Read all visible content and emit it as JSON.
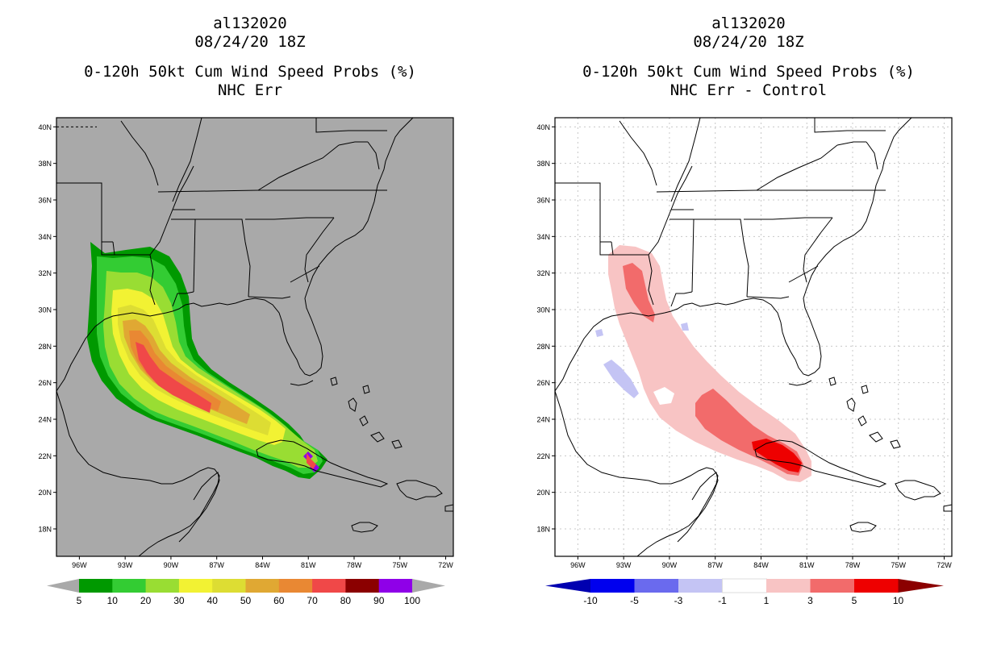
{
  "left_panel": {
    "storm_id": "al132020",
    "datetime": "08/24/20 18Z",
    "product": "0-120h 50kt Cum Wind Speed Probs (%)",
    "subtitle": "NHC Err",
    "background_color": "#a9a9a9",
    "colorbar": {
      "ticks": [
        "5",
        "10",
        "20",
        "30",
        "40",
        "50",
        "60",
        "70",
        "80",
        "90",
        "100"
      ],
      "colors": [
        "#009900",
        "#33cc33",
        "#99dd33",
        "#f2f233",
        "#dddd33",
        "#e0a833",
        "#e98833",
        "#f04848",
        "#8b0000",
        "#8f00e8"
      ],
      "end_color": "#a9a9a9"
    }
  },
  "right_panel": {
    "storm_id": "al132020",
    "datetime": "08/24/20 18Z",
    "product": "0-120h 50kt Cum Wind Speed Probs (%)",
    "subtitle": "NHC Err - Control",
    "background_color": "#ffffff",
    "colorbar": {
      "ticks": [
        "-10",
        "-5",
        "-3",
        "-1",
        "1",
        "3",
        "5",
        "10"
      ],
      "colors": [
        "#0000b0",
        "#0000ee",
        "#6a6aee",
        "#c4c4f4",
        "#ffffff",
        "#f8c4c4",
        "#f26b6b",
        "#ee0000",
        "#8b0000"
      ]
    }
  },
  "map_axes": {
    "lat_labels": [
      "40N",
      "38N",
      "36N",
      "34N",
      "32N",
      "30N",
      "28N",
      "26N",
      "24N",
      "22N",
      "20N",
      "18N"
    ],
    "lon_labels": [
      "96W",
      "93W",
      "90W",
      "87W",
      "84W",
      "81W",
      "78W",
      "75W",
      "72W"
    ],
    "lat_range": [
      16.5,
      40.5
    ],
    "lon_range": [
      -97.5,
      -71.5
    ]
  }
}
